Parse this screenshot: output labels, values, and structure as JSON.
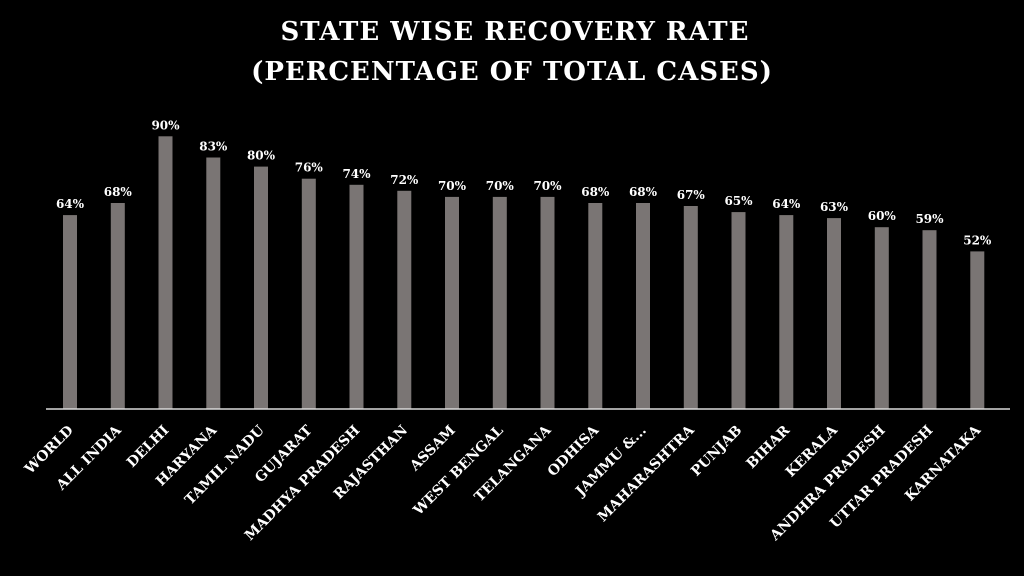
{
  "colors": {
    "background": "#000000",
    "bar": "#7a7574",
    "axis": "#d9d9d9",
    "text": "#ffffff"
  },
  "chart_data": {
    "type": "bar",
    "title": [
      "STATE WISE RECOVERY RATE",
      "(PERCENTAGE OF TOTAL CASES)"
    ],
    "xlabel": "",
    "ylabel": "",
    "ylim": [
      0,
      100
    ],
    "grid": false,
    "legend": "none",
    "value_suffix": "%",
    "categories": [
      "WORLD",
      "ALL INDIA",
      "DELHI",
      "HARYANA",
      "TAMIL NADU",
      "GUJARAT",
      "MADHYA PRADESH",
      "RAJASTHAN",
      "ASSAM",
      "WEST BENGAL",
      "TELANGANA",
      "ODHISA",
      "JAMMU &...",
      "MAHARASHTRA",
      "PUNJAB",
      "BIHAR",
      "KERALA",
      "ANDHRA PRADESH",
      "UTTAR PRADESH",
      "KARNATAKA"
    ],
    "values": [
      64,
      68,
      90,
      83,
      80,
      76,
      74,
      72,
      70,
      70,
      70,
      68,
      68,
      67,
      65,
      64,
      63,
      60,
      59,
      52
    ]
  }
}
